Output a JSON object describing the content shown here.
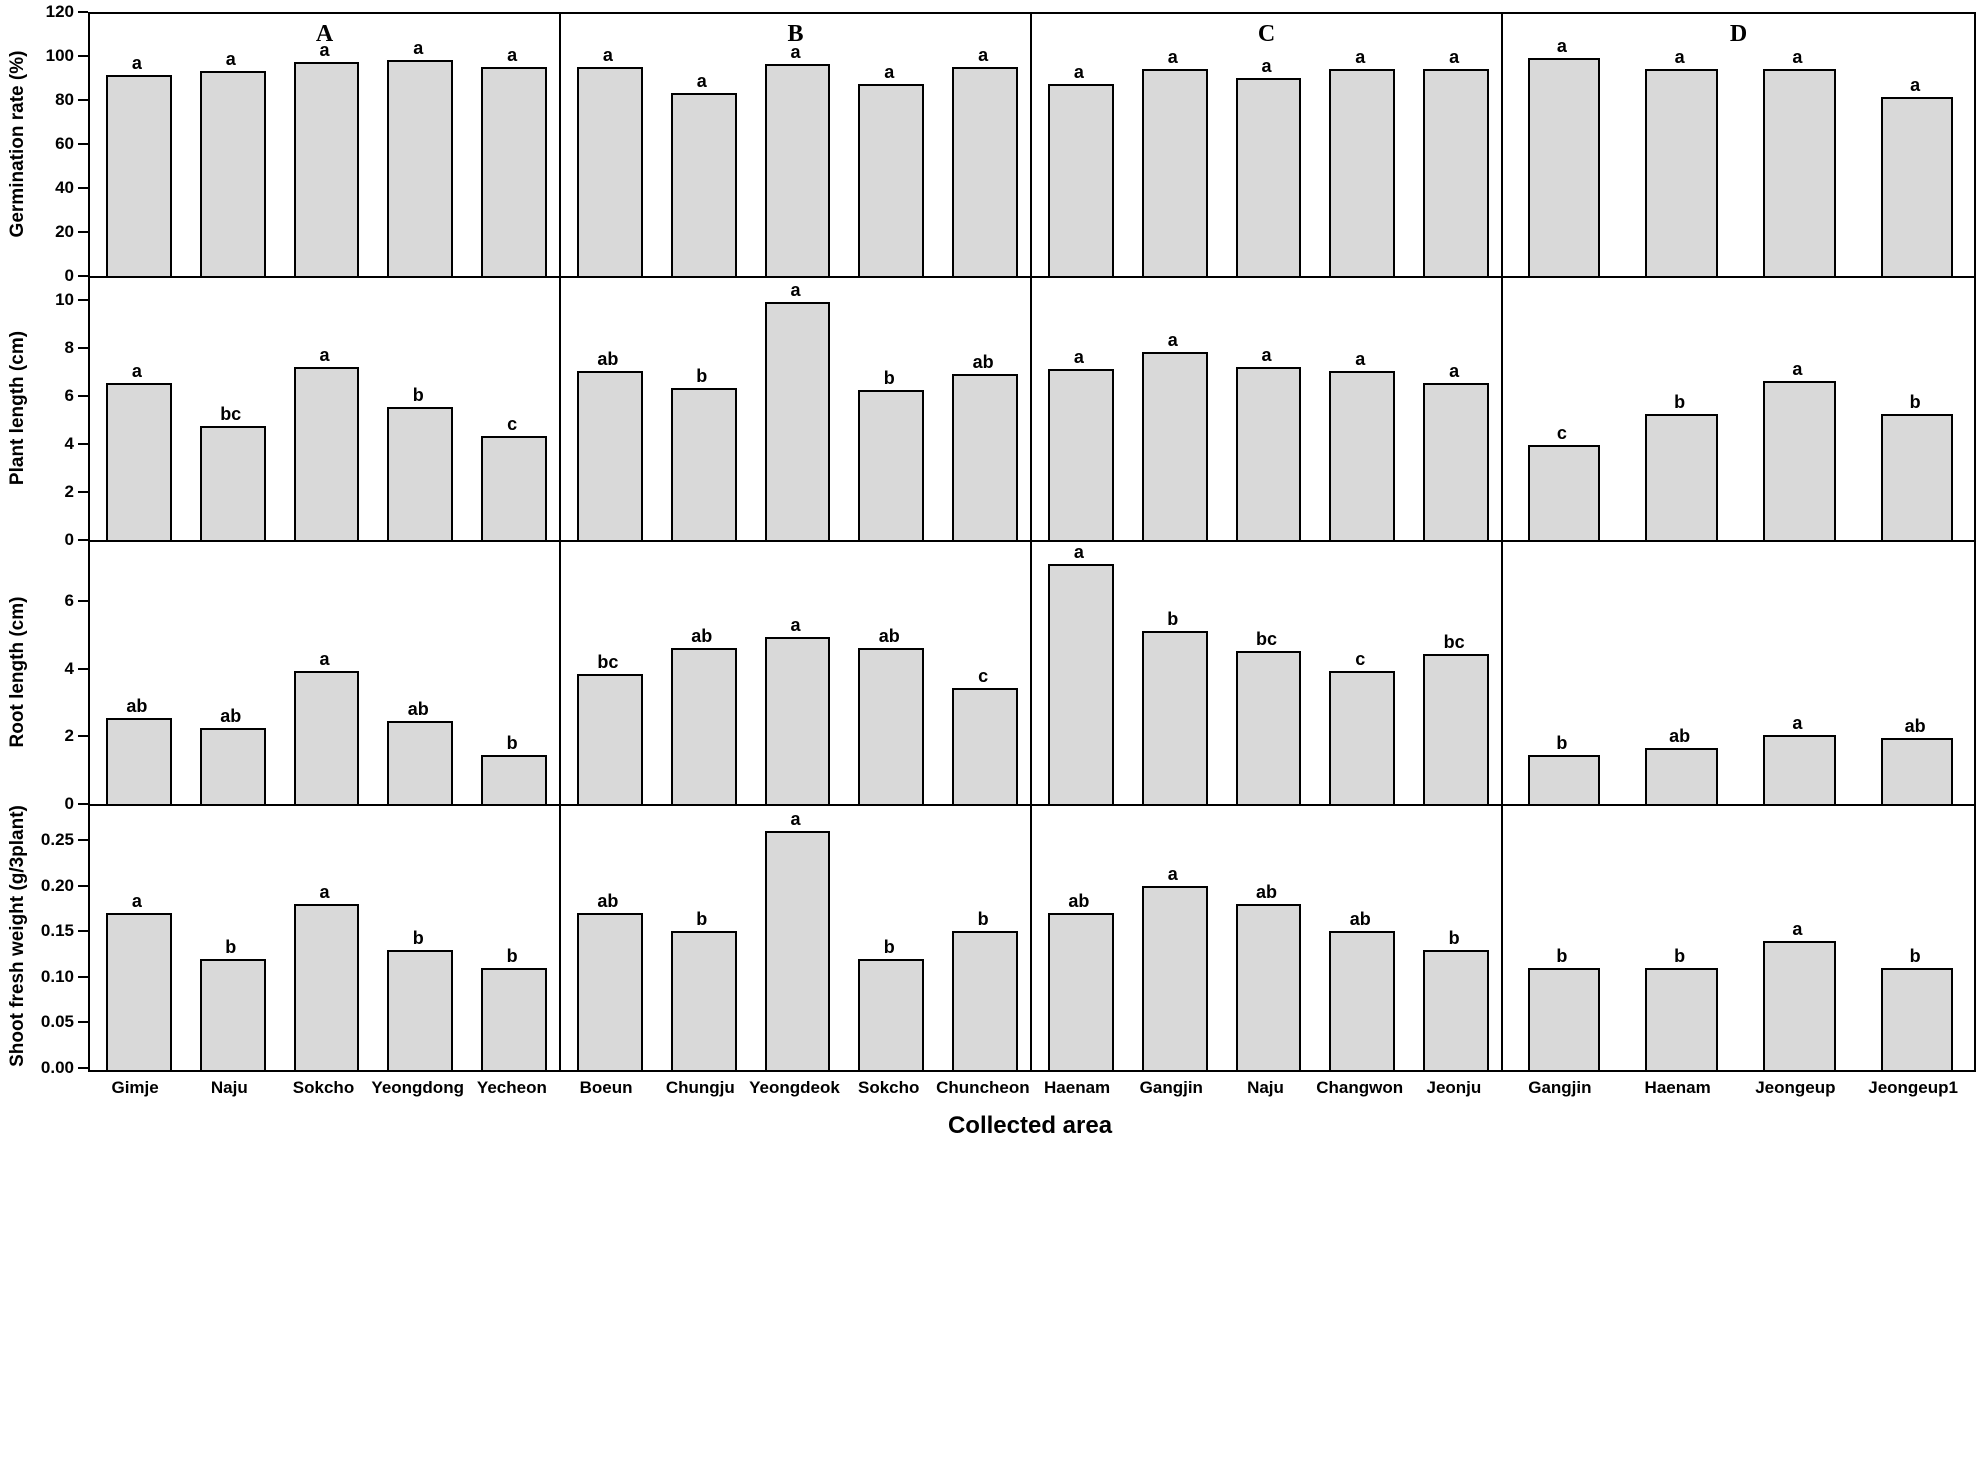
{
  "chart_data": {
    "type": "bar",
    "title": "",
    "xlabel": "Collected area",
    "bar_fill": "#d9d9d9",
    "bar_border": "#000000",
    "legend": "none",
    "grid": "off",
    "panel_labels": [
      "A",
      "B",
      "C",
      "D"
    ],
    "panel_categories": [
      [
        "Gimje",
        "Naju",
        "Sokcho",
        "Yeongdong",
        "Yecheon"
      ],
      [
        "Boeun",
        "Chungju",
        "Yeongdeok",
        "Sokcho",
        "Chuncheon"
      ],
      [
        "Haenam",
        "Gangjin",
        "Naju",
        "Changwon",
        "Jeonju"
      ],
      [
        "Gangjin",
        "Haenam",
        "Jeongeup",
        "Jeongeup1"
      ]
    ],
    "rows": [
      {
        "id": "germination_rate",
        "ylabel": "Germination rate (%)",
        "ylim": [
          0,
          120
        ],
        "ymax": 120,
        "ytick_labels": [
          "0",
          "20",
          "40",
          "60",
          "80",
          "100",
          "120"
        ],
        "ytick_values": [
          0,
          20,
          40,
          60,
          80,
          100,
          120
        ],
        "panels": [
          {
            "panel": "A",
            "values": [
              91,
              93,
              97,
              98,
              95
            ],
            "letters": [
              "a",
              "a",
              "a",
              "a",
              "a"
            ]
          },
          {
            "panel": "B",
            "values": [
              95,
              83,
              96,
              87,
              95
            ],
            "letters": [
              "a",
              "a",
              "a",
              "a",
              "a"
            ]
          },
          {
            "panel": "C",
            "values": [
              87,
              94,
              90,
              94,
              94
            ],
            "letters": [
              "a",
              "a",
              "a",
              "a",
              "a"
            ]
          },
          {
            "panel": "D",
            "values": [
              99,
              94,
              94,
              81
            ],
            "letters": [
              "a",
              "a",
              "a",
              "a"
            ]
          }
        ]
      },
      {
        "id": "plant_length",
        "ylabel": "Plant length (cm)",
        "ylim": [
          0,
          10
        ],
        "ymax": 11,
        "ytick_labels": [
          "0",
          "2",
          "4",
          "6",
          "8",
          "10"
        ],
        "ytick_values": [
          0,
          2,
          4,
          6,
          8,
          10
        ],
        "panels": [
          {
            "panel": "A",
            "values": [
              6.5,
              4.7,
              7.2,
              5.5,
              4.3
            ],
            "letters": [
              "a",
              "bc",
              "a",
              "b",
              "c"
            ]
          },
          {
            "panel": "B",
            "values": [
              7.0,
              6.3,
              9.9,
              6.2,
              6.9
            ],
            "letters": [
              "ab",
              "b",
              "a",
              "b",
              "ab"
            ]
          },
          {
            "panel": "C",
            "values": [
              7.1,
              7.8,
              7.2,
              7.0,
              6.5
            ],
            "letters": [
              "a",
              "a",
              "a",
              "a",
              "a"
            ]
          },
          {
            "panel": "D",
            "values": [
              3.9,
              5.2,
              6.6,
              5.2
            ],
            "letters": [
              "c",
              "b",
              "a",
              "b"
            ]
          }
        ]
      },
      {
        "id": "root_length",
        "ylabel": "Root length (cm)",
        "ylim": [
          0,
          6
        ],
        "ymax": 7.8,
        "ytick_labels": [
          "0",
          "2",
          "4",
          "6"
        ],
        "ytick_values": [
          0,
          2,
          4,
          6
        ],
        "panels": [
          {
            "panel": "A",
            "values": [
              2.5,
              2.2,
              3.9,
              2.4,
              1.4
            ],
            "letters": [
              "ab",
              "ab",
              "a",
              "ab",
              "b"
            ]
          },
          {
            "panel": "B",
            "values": [
              3.8,
              4.6,
              4.9,
              4.6,
              3.4
            ],
            "letters": [
              "bc",
              "ab",
              "a",
              "ab",
              "c"
            ]
          },
          {
            "panel": "C",
            "values": [
              7.1,
              5.1,
              4.5,
              3.9,
              4.4
            ],
            "letters": [
              "a",
              "b",
              "bc",
              "c",
              "bc"
            ]
          },
          {
            "panel": "D",
            "values": [
              1.4,
              1.6,
              2.0,
              1.9
            ],
            "letters": [
              "b",
              "ab",
              "a",
              "ab"
            ]
          }
        ]
      },
      {
        "id": "shoot_fresh_weight",
        "ylabel": "Shoot fresh weight (g/3plant)",
        "ylim": [
          0,
          0.25
        ],
        "ymax": 0.29,
        "ytick_labels": [
          "0.00",
          "0.05",
          "0.10",
          "0.15",
          "0.20",
          "0.25"
        ],
        "ytick_values": [
          0,
          0.05,
          0.1,
          0.15,
          0.2,
          0.25
        ],
        "panels": [
          {
            "panel": "A",
            "values": [
              0.17,
              0.12,
              0.18,
              0.13,
              0.11
            ],
            "letters": [
              "a",
              "b",
              "a",
              "b",
              "b"
            ]
          },
          {
            "panel": "B",
            "values": [
              0.17,
              0.15,
              0.26,
              0.12,
              0.15
            ],
            "letters": [
              "ab",
              "b",
              "a",
              "b",
              "b"
            ]
          },
          {
            "panel": "C",
            "values": [
              0.17,
              0.2,
              0.18,
              0.15,
              0.13
            ],
            "letters": [
              "ab",
              "a",
              "ab",
              "ab",
              "b"
            ]
          },
          {
            "panel": "D",
            "values": [
              0.11,
              0.11,
              0.14,
              0.11
            ],
            "letters": [
              "b",
              "b",
              "a",
              "b"
            ]
          }
        ]
      }
    ]
  }
}
